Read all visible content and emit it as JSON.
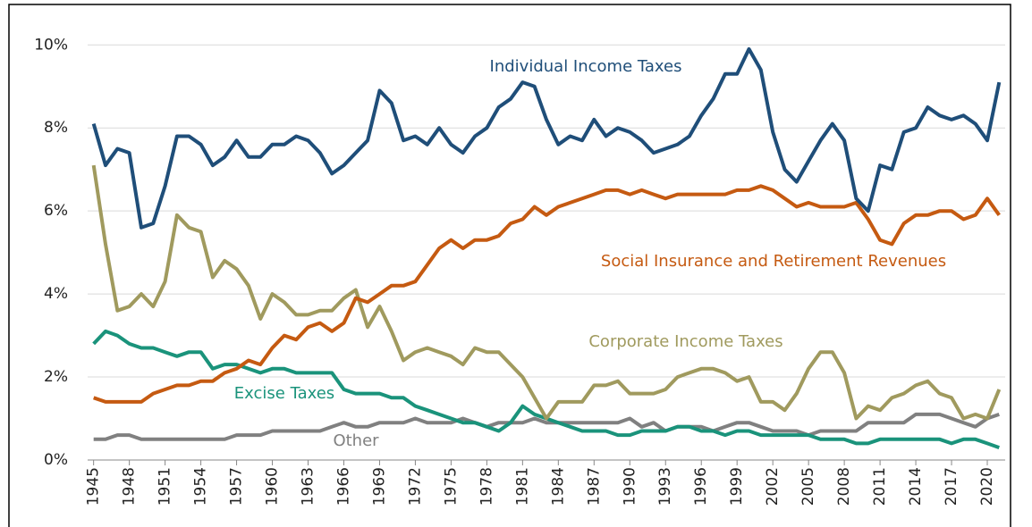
{
  "chart_data": {
    "type": "line",
    "x": [
      1945,
      1946,
      1947,
      1948,
      1949,
      1950,
      1951,
      1952,
      1953,
      1954,
      1955,
      1956,
      1957,
      1958,
      1959,
      1960,
      1961,
      1962,
      1963,
      1964,
      1965,
      1966,
      1967,
      1968,
      1969,
      1970,
      1971,
      1972,
      1973,
      1974,
      1975,
      1976,
      1977,
      1978,
      1979,
      1980,
      1981,
      1982,
      1983,
      1984,
      1985,
      1986,
      1987,
      1988,
      1989,
      1990,
      1991,
      1992,
      1993,
      1994,
      1995,
      1996,
      1997,
      1998,
      1999,
      2000,
      2001,
      2002,
      2003,
      2004,
      2005,
      2006,
      2007,
      2008,
      2009,
      2010,
      2011,
      2012,
      2013,
      2014,
      2015,
      2016,
      2017,
      2018,
      2019,
      2020,
      2021
    ],
    "xlim": [
      1944.5,
      2021.5
    ],
    "xticks": [
      1945,
      1948,
      1951,
      1954,
      1957,
      1960,
      1963,
      1966,
      1969,
      1972,
      1975,
      1978,
      1981,
      1984,
      1987,
      1990,
      1993,
      1996,
      1999,
      2002,
      2005,
      2008,
      2011,
      2014,
      2017,
      2020
    ],
    "ylim": [
      0,
      10.2
    ],
    "yticks": [
      {
        "value": 0,
        "label": "0%"
      },
      {
        "value": 2,
        "label": "2%"
      },
      {
        "value": 4,
        "label": "4%"
      },
      {
        "value": 6,
        "label": "6%"
      },
      {
        "value": 8,
        "label": "8%"
      },
      {
        "value": 10,
        "label": "10%"
      }
    ],
    "grid": true,
    "series": [
      {
        "name": "Individual Income Taxes",
        "color": "#1f4e79",
        "values": [
          8.1,
          7.1,
          7.5,
          7.4,
          5.6,
          5.7,
          6.6,
          7.8,
          7.8,
          7.6,
          7.1,
          7.3,
          7.7,
          7.3,
          7.3,
          7.6,
          7.6,
          7.8,
          7.7,
          7.4,
          6.9,
          7.1,
          7.4,
          7.7,
          8.9,
          8.6,
          7.7,
          7.8,
          7.6,
          8.0,
          7.6,
          7.4,
          7.8,
          8.0,
          8.5,
          8.7,
          9.1,
          9.0,
          8.2,
          7.6,
          7.8,
          7.7,
          8.2,
          7.8,
          8.0,
          7.9,
          7.7,
          7.4,
          7.5,
          7.6,
          7.8,
          8.3,
          8.7,
          9.3,
          9.3,
          9.9,
          9.4,
          7.9,
          7.0,
          6.7,
          7.2,
          7.7,
          8.1,
          7.7,
          6.3,
          6.0,
          7.1,
          7.0,
          7.9,
          8.0,
          8.5,
          8.3,
          8.2,
          8.3,
          8.1,
          7.7,
          9.1
        ]
      },
      {
        "name": "Social Insurance and Retirement Revenues",
        "color": "#c55a11",
        "values": [
          1.5,
          1.4,
          1.4,
          1.4,
          1.4,
          1.6,
          1.7,
          1.8,
          1.8,
          1.9,
          1.9,
          2.1,
          2.2,
          2.4,
          2.3,
          2.7,
          3.0,
          2.9,
          3.2,
          3.3,
          3.1,
          3.3,
          3.9,
          3.8,
          4.0,
          4.2,
          4.2,
          4.3,
          4.7,
          5.1,
          5.3,
          5.1,
          5.3,
          5.3,
          5.4,
          5.7,
          5.8,
          6.1,
          5.9,
          6.1,
          6.2,
          6.3,
          6.4,
          6.5,
          6.5,
          6.4,
          6.5,
          6.4,
          6.3,
          6.4,
          6.4,
          6.4,
          6.4,
          6.4,
          6.5,
          6.5,
          6.6,
          6.5,
          6.3,
          6.1,
          6.2,
          6.1,
          6.1,
          6.1,
          6.2,
          5.8,
          5.3,
          5.2,
          5.7,
          5.9,
          5.9,
          6.0,
          6.0,
          5.8,
          5.9,
          6.3,
          5.9
        ]
      },
      {
        "name": "Corporate Income Taxes",
        "color": "#a09a5e",
        "values": [
          7.1,
          5.2,
          3.6,
          3.7,
          4.0,
          3.7,
          4.3,
          5.9,
          5.6,
          5.5,
          4.4,
          4.8,
          4.6,
          4.2,
          3.4,
          4.0,
          3.8,
          3.5,
          3.5,
          3.6,
          3.6,
          3.9,
          4.1,
          3.2,
          3.7,
          3.1,
          2.4,
          2.6,
          2.7,
          2.6,
          2.5,
          2.3,
          2.7,
          2.6,
          2.6,
          2.3,
          2.0,
          1.5,
          1.0,
          1.4,
          1.4,
          1.4,
          1.8,
          1.8,
          1.9,
          1.6,
          1.6,
          1.6,
          1.7,
          2.0,
          2.1,
          2.2,
          2.2,
          2.1,
          1.9,
          2.0,
          1.4,
          1.4,
          1.2,
          1.6,
          2.2,
          2.6,
          2.6,
          2.1,
          1.0,
          1.3,
          1.2,
          1.5,
          1.6,
          1.8,
          1.9,
          1.6,
          1.5,
          1.0,
          1.1,
          1.0,
          1.7
        ]
      },
      {
        "name": "Excise Taxes",
        "color": "#1a937b",
        "values": [
          2.8,
          3.1,
          3.0,
          2.8,
          2.7,
          2.7,
          2.6,
          2.5,
          2.6,
          2.6,
          2.2,
          2.3,
          2.3,
          2.2,
          2.1,
          2.2,
          2.2,
          2.1,
          2.1,
          2.1,
          2.1,
          1.7,
          1.6,
          1.6,
          1.6,
          1.5,
          1.5,
          1.3,
          1.2,
          1.1,
          1.0,
          0.9,
          0.9,
          0.8,
          0.7,
          0.9,
          1.3,
          1.1,
          1.0,
          0.9,
          0.8,
          0.7,
          0.7,
          0.7,
          0.6,
          0.6,
          0.7,
          0.7,
          0.7,
          0.8,
          0.8,
          0.7,
          0.7,
          0.6,
          0.7,
          0.7,
          0.6,
          0.6,
          0.6,
          0.6,
          0.6,
          0.5,
          0.5,
          0.5,
          0.4,
          0.4,
          0.5,
          0.5,
          0.5,
          0.5,
          0.5,
          0.5,
          0.4,
          0.5,
          0.5,
          0.4,
          0.3
        ]
      },
      {
        "name": "Other",
        "color": "#808080",
        "values": [
          0.5,
          0.5,
          0.6,
          0.6,
          0.5,
          0.5,
          0.5,
          0.5,
          0.5,
          0.5,
          0.5,
          0.5,
          0.6,
          0.6,
          0.6,
          0.7,
          0.7,
          0.7,
          0.7,
          0.7,
          0.8,
          0.9,
          0.8,
          0.8,
          0.9,
          0.9,
          0.9,
          1.0,
          0.9,
          0.9,
          0.9,
          1.0,
          0.9,
          0.8,
          0.9,
          0.9,
          0.9,
          1.0,
          0.9,
          0.9,
          0.9,
          0.9,
          0.9,
          0.9,
          0.9,
          1.0,
          0.8,
          0.9,
          0.7,
          0.8,
          0.8,
          0.8,
          0.7,
          0.8,
          0.9,
          0.9,
          0.8,
          0.7,
          0.7,
          0.7,
          0.6,
          0.7,
          0.7,
          0.7,
          0.7,
          0.9,
          0.9,
          0.9,
          0.9,
          1.1,
          1.1,
          1.1,
          1.0,
          0.9,
          0.8,
          1.0,
          1.1
        ]
      }
    ]
  }
}
